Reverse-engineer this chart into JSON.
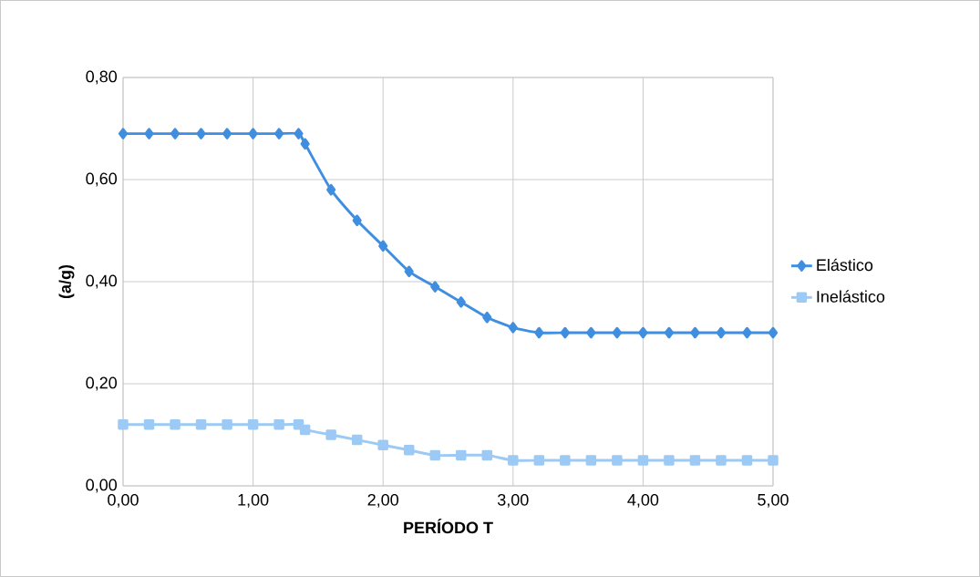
{
  "chart_data": {
    "type": "line",
    "xlabel": "PERÍODO T",
    "ylabel": "(a/g)",
    "x": [
      0,
      0.2,
      0.4,
      0.6,
      0.8,
      1.0,
      1.2,
      1.35,
      1.4,
      1.6,
      1.8,
      2.0,
      2.2,
      2.4,
      2.6,
      2.8,
      3.0,
      3.2,
      3.4,
      3.6,
      3.8,
      4.0,
      4.2,
      4.4,
      4.6,
      4.8,
      5.0
    ],
    "series": [
      {
        "name": "Elástico",
        "color": "#3f8ee0",
        "marker": "diamond",
        "values": [
          0.69,
          0.69,
          0.69,
          0.69,
          0.69,
          0.69,
          0.69,
          0.69,
          0.67,
          0.58,
          0.52,
          0.47,
          0.42,
          0.39,
          0.36,
          0.33,
          0.31,
          0.3,
          0.3,
          0.3,
          0.3,
          0.3,
          0.3,
          0.3,
          0.3,
          0.3,
          0.3
        ]
      },
      {
        "name": "Inelástico",
        "color": "#9ccaf4",
        "marker": "square",
        "values": [
          0.12,
          0.12,
          0.12,
          0.12,
          0.12,
          0.12,
          0.12,
          0.12,
          0.11,
          0.1,
          0.09,
          0.08,
          0.07,
          0.06,
          0.06,
          0.06,
          0.05,
          0.05,
          0.05,
          0.05,
          0.05,
          0.05,
          0.05,
          0.05,
          0.05,
          0.05,
          0.05
        ]
      }
    ],
    "xlim": [
      0,
      5
    ],
    "ylim": [
      0,
      0.8
    ],
    "xticks": [
      {
        "value": 0,
        "label": "0,00"
      },
      {
        "value": 1,
        "label": "1,00"
      },
      {
        "value": 2,
        "label": "2,00"
      },
      {
        "value": 3,
        "label": "3,00"
      },
      {
        "value": 4,
        "label": "4,00"
      },
      {
        "value": 5,
        "label": "5,00"
      }
    ],
    "yticks": [
      {
        "value": 0,
        "label": "0,00"
      },
      {
        "value": 0.2,
        "label": "0,20"
      },
      {
        "value": 0.4,
        "label": "0,40"
      },
      {
        "value": 0.6,
        "label": "0,60"
      },
      {
        "value": 0.8,
        "label": "0,80"
      }
    ],
    "grid": true,
    "legend": "right",
    "line_style": "solid"
  }
}
